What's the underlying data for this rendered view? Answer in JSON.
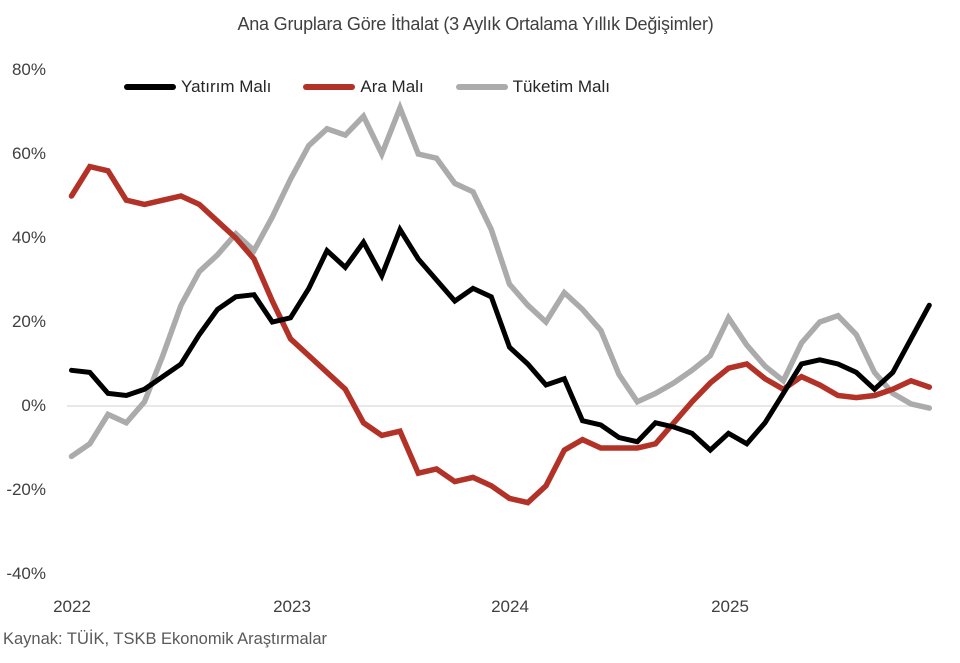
{
  "page": {
    "background": "#FFFFFF"
  },
  "colors": {
    "zero_line": "#D9D9D9",
    "title_text": "#404040",
    "axis_text": "#404040",
    "legend_text": "#262626",
    "source_text": "#595959"
  },
  "chart_data": {
    "type": "line",
    "title": "Ana Gruplara Göre İthalat (3 Aylık Ortalama Yıllık Değişimler)",
    "source_note": "Kaynak: TÜİK, TSKB Ekonomik Araştırmalar",
    "x_unit": "month",
    "x_tick_labels": [
      "2022",
      "2023",
      "2024",
      "2025"
    ],
    "y_tick_labels": [
      "80%",
      "60%",
      "40%",
      "20%",
      "0%",
      "-20%",
      "-40%"
    ],
    "y_ticks_percent": [
      80,
      60,
      40,
      20,
      0,
      -20,
      -40
    ],
    "ylim": [
      -40,
      80
    ],
    "grid": "zero-line-only",
    "legend_position": "top-left",
    "months": [
      "2022-01",
      "2022-02",
      "2022-03",
      "2022-04",
      "2022-05",
      "2022-06",
      "2022-07",
      "2022-08",
      "2022-09",
      "2022-10",
      "2022-11",
      "2022-12",
      "2023-01",
      "2023-02",
      "2023-03",
      "2023-04",
      "2023-05",
      "2023-06",
      "2023-07",
      "2023-08",
      "2023-09",
      "2023-10",
      "2023-11",
      "2023-12",
      "2024-01",
      "2024-02",
      "2024-03",
      "2024-04",
      "2024-05",
      "2024-06",
      "2024-07",
      "2024-08",
      "2024-09",
      "2024-10",
      "2024-11",
      "2024-12",
      "2025-01",
      "2025-02",
      "2025-03",
      "2025-04",
      "2025-05",
      "2025-06",
      "2025-07",
      "2025-08",
      "2025-09",
      "2025-10",
      "2025-11",
      "2025-12"
    ],
    "unit": "percent",
    "series": [
      {
        "name": "Yatırım Malı",
        "color": "#000000",
        "stroke_width": 5,
        "values": [
          8.5,
          8,
          3,
          2.5,
          4,
          7,
          10,
          17,
          23,
          26,
          26.5,
          20,
          21,
          28,
          37,
          33,
          39,
          31,
          42,
          35,
          30,
          25,
          28,
          26,
          14,
          10,
          5,
          6.5,
          -3.5,
          -4.5,
          -7.5,
          -8.5,
          -4,
          -5,
          -6.5,
          -10.5,
          -6.5,
          -9,
          -4,
          3,
          10,
          11,
          10,
          8,
          4,
          8,
          16,
          24
        ]
      },
      {
        "name": "Ara Malı",
        "color": "#B23227",
        "stroke_width": 5.5,
        "values": [
          50,
          57,
          56,
          49,
          48,
          49,
          50,
          48,
          44,
          40,
          35,
          25,
          16,
          12,
          8,
          4,
          -4,
          -7,
          -6,
          -16,
          -15,
          -18,
          -17,
          -19,
          -22,
          -23,
          -19,
          -10.5,
          -8,
          -10,
          -10,
          -10,
          -9,
          -4,
          1,
          5.5,
          9,
          10,
          6.5,
          4,
          7,
          5,
          2.5,
          2,
          2.5,
          4,
          6,
          4.5
        ]
      },
      {
        "name": "Tüketim Malı",
        "color": "#ABABAB",
        "stroke_width": 5.5,
        "values": [
          -12,
          -9,
          -2,
          -4,
          1,
          12,
          24,
          32,
          36,
          41,
          37,
          45,
          54,
          62,
          66,
          64.5,
          69,
          60,
          71,
          60,
          59,
          53,
          51,
          42,
          29,
          24,
          20,
          27,
          23,
          18,
          7.5,
          1,
          3,
          5.5,
          8.5,
          12,
          21,
          14.5,
          9.5,
          6,
          15,
          20,
          21.5,
          17,
          8,
          3,
          0.5,
          -0.5
        ]
      }
    ]
  }
}
